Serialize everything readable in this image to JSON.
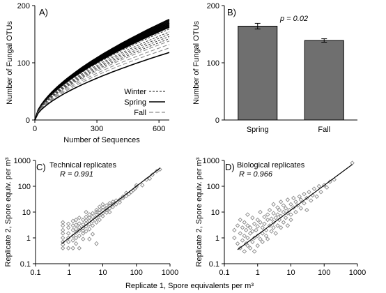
{
  "chart_data": [
    {
      "id": "A",
      "type": "line",
      "panel_label": "A)",
      "xlabel": "Number  of Sequences",
      "ylabel": "Number  of Fungal OTUs",
      "xlim": [
        0,
        650
      ],
      "ylim": [
        0,
        200
      ],
      "xticks": [
        0,
        300,
        600
      ],
      "yticks": [
        0,
        100,
        200
      ],
      "curve_exponent": 0.62,
      "series": [
        {
          "name": "Spring",
          "style": "solid",
          "color": "#000000",
          "end_values": [
            176,
            174,
            172,
            170,
            169,
            167,
            166,
            164,
            163,
            162
          ]
        },
        {
          "name": "Winter",
          "style": "dashed",
          "color": "#444444",
          "end_values": [
            159,
            154,
            150,
            146,
            142
          ]
        },
        {
          "name": "Fall",
          "style": "long-dashed",
          "color": "#8c8c8c",
          "end_values": [
            138,
            132,
            126
          ]
        },
        {
          "name": "",
          "style": "solid",
          "color": "#000000",
          "end_values": [
            118
          ]
        }
      ],
      "legend": [
        {
          "label": "Winter",
          "style": "dashed"
        },
        {
          "label": "Spring",
          "style": "solid"
        },
        {
          "label": "Fall",
          "style": "long-dashed"
        }
      ]
    },
    {
      "id": "B",
      "type": "bar",
      "panel_label": "B)",
      "ylabel": "Number  of Fungal OTUs",
      "ylim": [
        0,
        200
      ],
      "yticks": [
        0,
        100,
        200
      ],
      "categories": [
        "Spring",
        "Fall"
      ],
      "values": [
        164,
        139
      ],
      "errors": [
        5,
        3
      ],
      "bar_color": "#6f6f6f",
      "annotation": "p = 0.02"
    },
    {
      "id": "C",
      "type": "scatter",
      "panel_label": "C)",
      "annotation_title": "Technical replicates",
      "annotation_r": "R = 0.991",
      "ylabel": "Replicate 2, Spore equiv. per m³",
      "xscale": "log",
      "yscale": "log",
      "xlim": [
        0.1,
        1000
      ],
      "ylim": [
        0.1,
        1000
      ],
      "yticks": [
        0.1,
        1,
        10,
        100,
        1000
      ],
      "ytick_labels": [
        "0.1",
        "1",
        "10",
        "100",
        "1000"
      ],
      "fit": [
        [
          0.6,
          0.6
        ],
        [
          500,
          500
        ]
      ],
      "points": [
        [
          0.65,
          0.4
        ],
        [
          0.65,
          0.7
        ],
        [
          0.65,
          1.0
        ],
        [
          0.65,
          1.5
        ],
        [
          0.65,
          2.0
        ],
        [
          0.65,
          3.0
        ],
        [
          0.65,
          4.0
        ],
        [
          0.65,
          0.55
        ],
        [
          0.95,
          0.4
        ],
        [
          0.95,
          0.7
        ],
        [
          0.95,
          1.0
        ],
        [
          0.95,
          1.5
        ],
        [
          0.95,
          2.5
        ],
        [
          0.95,
          3.5
        ],
        [
          1.3,
          0.4
        ],
        [
          1.3,
          0.8
        ],
        [
          1.3,
          1.2
        ],
        [
          1.3,
          2.0
        ],
        [
          1.3,
          3.0
        ],
        [
          1.3,
          4.5
        ],
        [
          1.6,
          0.6
        ],
        [
          1.6,
          1.0
        ],
        [
          1.6,
          1.6
        ],
        [
          1.6,
          2.2
        ],
        [
          1.6,
          3.2
        ],
        [
          1.6,
          5.0
        ],
        [
          2.0,
          0.4
        ],
        [
          2.0,
          1.2
        ],
        [
          2.0,
          1.9
        ],
        [
          2.0,
          2.6
        ],
        [
          2.0,
          3.6
        ],
        [
          2.0,
          6.0
        ],
        [
          2.6,
          0.9
        ],
        [
          2.6,
          1.5
        ],
        [
          2.6,
          2.4
        ],
        [
          2.6,
          3.3
        ],
        [
          2.6,
          5.0
        ],
        [
          2.6,
          1.9
        ],
        [
          3.2,
          1.8
        ],
        [
          3.2,
          2.8
        ],
        [
          3.2,
          3.6
        ],
        [
          3.2,
          4.8
        ],
        [
          3.2,
          6.5
        ],
        [
          3.2,
          10
        ],
        [
          4.0,
          0.9
        ],
        [
          4.0,
          2.2
        ],
        [
          4.0,
          3.4
        ],
        [
          4.0,
          4.6
        ],
        [
          4.0,
          6.0
        ],
        [
          4.0,
          8.0
        ],
        [
          5.0,
          1.4
        ],
        [
          5.0,
          3.0
        ],
        [
          5.0,
          4.5
        ],
        [
          5.0,
          6.5
        ],
        [
          5.0,
          9.0
        ],
        [
          6.5,
          4.0
        ],
        [
          6.5,
          6.0
        ],
        [
          6.5,
          8.0
        ],
        [
          6.5,
          10
        ],
        [
          6.5,
          12
        ],
        [
          6.5,
          0.6
        ],
        [
          8.0,
          5.0
        ],
        [
          8.0,
          7.5
        ],
        [
          8.0,
          9.5
        ],
        [
          8.0,
          12
        ],
        [
          8.0,
          16
        ],
        [
          10,
          7.0
        ],
        [
          10,
          9.0
        ],
        [
          10,
          12
        ],
        [
          10,
          15
        ],
        [
          10,
          20
        ],
        [
          13,
          9.5
        ],
        [
          13,
          12
        ],
        [
          13,
          14
        ],
        [
          13,
          18
        ],
        [
          16,
          10
        ],
        [
          16,
          14
        ],
        [
          16,
          18
        ],
        [
          16,
          22
        ],
        [
          20,
          16
        ],
        [
          20,
          20
        ],
        [
          20,
          25
        ],
        [
          25,
          20
        ],
        [
          25,
          28
        ],
        [
          32,
          24
        ],
        [
          32,
          30
        ],
        [
          40,
          35
        ],
        [
          40,
          40
        ],
        [
          50,
          42
        ],
        [
          50,
          55
        ],
        [
          60,
          50
        ],
        [
          70,
          60
        ],
        [
          80,
          70
        ],
        [
          90,
          80
        ],
        [
          100,
          95
        ],
        [
          100,
          110
        ],
        [
          150,
          110
        ],
        [
          200,
          180
        ],
        [
          250,
          200
        ],
        [
          300,
          280
        ],
        [
          400,
          380
        ],
        [
          500,
          450
        ]
      ]
    },
    {
      "id": "D",
      "type": "scatter",
      "panel_label": "D)",
      "annotation_title": "Biological replicates",
      "annotation_r": "R = 0.966",
      "ylabel": "Replicate 2, Spore equiv. per m³",
      "xscale": "log",
      "yscale": "log",
      "xlim": [
        0.1,
        1000
      ],
      "ylim": [
        0.1,
        1000
      ],
      "fit": [
        [
          0.25,
          0.35
        ],
        [
          700,
          700
        ]
      ],
      "points": [
        [
          0.2,
          2.0
        ],
        [
          0.2,
          1.0
        ],
        [
          0.25,
          0.6
        ],
        [
          0.25,
          3.0
        ],
        [
          0.3,
          0.4
        ],
        [
          0.3,
          1.5
        ],
        [
          0.3,
          5.0
        ],
        [
          0.35,
          0.8
        ],
        [
          0.35,
          2.5
        ],
        [
          0.4,
          0.3
        ],
        [
          0.4,
          1.2
        ],
        [
          0.4,
          4.0
        ],
        [
          0.45,
          0.6
        ],
        [
          0.45,
          2.0
        ],
        [
          0.5,
          0.5
        ],
        [
          0.5,
          1.0
        ],
        [
          0.5,
          3.0
        ],
        [
          0.5,
          8.0
        ],
        [
          0.6,
          0.4
        ],
        [
          0.6,
          1.5
        ],
        [
          0.6,
          2.5
        ],
        [
          0.7,
          0.7
        ],
        [
          0.7,
          1.8
        ],
        [
          0.7,
          6.0
        ],
        [
          0.8,
          1.0
        ],
        [
          0.8,
          3.5
        ],
        [
          0.8,
          0.3
        ],
        [
          0.9,
          2.0
        ],
        [
          1.0,
          0.5
        ],
        [
          1.0,
          1.2
        ],
        [
          1.0,
          2.8
        ],
        [
          1.0,
          5.0
        ],
        [
          1.2,
          0.9
        ],
        [
          1.2,
          4.0
        ],
        [
          1.2,
          10
        ],
        [
          1.4,
          1.5
        ],
        [
          1.4,
          2.5
        ],
        [
          1.4,
          0.7
        ],
        [
          1.6,
          3.5
        ],
        [
          1.6,
          6.5
        ],
        [
          1.8,
          1.2
        ],
        [
          1.8,
          2.0
        ],
        [
          2.0,
          5.0
        ],
        [
          2.0,
          8.0
        ],
        [
          2.0,
          0.9
        ],
        [
          2.3,
          3.0
        ],
        [
          2.3,
          12
        ],
        [
          2.6,
          1.8
        ],
        [
          2.6,
          5.5
        ],
        [
          3.0,
          2.5
        ],
        [
          3.0,
          4.0
        ],
        [
          3.0,
          9.0
        ],
        [
          3.0,
          20
        ],
        [
          3.5,
          6.0
        ],
        [
          3.5,
          1.5
        ],
        [
          4.0,
          3.0
        ],
        [
          4.0,
          8.0
        ],
        [
          4.0,
          15
        ],
        [
          4.5,
          5.0
        ],
        [
          4.5,
          12
        ],
        [
          5.0,
          2.5
        ],
        [
          5.0,
          7.0
        ],
        [
          5.0,
          25
        ],
        [
          6.0,
          4.0
        ],
        [
          6.0,
          10
        ],
        [
          6.0,
          18
        ],
        [
          7.0,
          6.0
        ],
        [
          7.0,
          14
        ],
        [
          8.0,
          3.0
        ],
        [
          8.0,
          9.0
        ],
        [
          8.0,
          30
        ],
        [
          9.0,
          12
        ],
        [
          10,
          5.0
        ],
        [
          10,
          8.0
        ],
        [
          10,
          20
        ],
        [
          12,
          15
        ],
        [
          12,
          35
        ],
        [
          14,
          10
        ],
        [
          14,
          25
        ],
        [
          16,
          18
        ],
        [
          18,
          40
        ],
        [
          20,
          14
        ],
        [
          20,
          30
        ],
        [
          25,
          22
        ],
        [
          25,
          50
        ],
        [
          30,
          35
        ],
        [
          30,
          12
        ],
        [
          35,
          60
        ],
        [
          40,
          28
        ],
        [
          45,
          45
        ],
        [
          50,
          80
        ],
        [
          60,
          40
        ],
        [
          70,
          100
        ],
        [
          80,
          60
        ],
        [
          100,
          110
        ],
        [
          120,
          90
        ],
        [
          150,
          150
        ],
        [
          200,
          180
        ],
        [
          700,
          800
        ]
      ]
    }
  ],
  "shared": {
    "xlabel_bottom": "Replicate 1, Spore equivalents per m³",
    "x_log_ticks": [
      0.1,
      1,
      10,
      100,
      1000
    ],
    "x_log_tick_labels": [
      "0.1",
      "1",
      "10",
      "100",
      "1000"
    ]
  }
}
